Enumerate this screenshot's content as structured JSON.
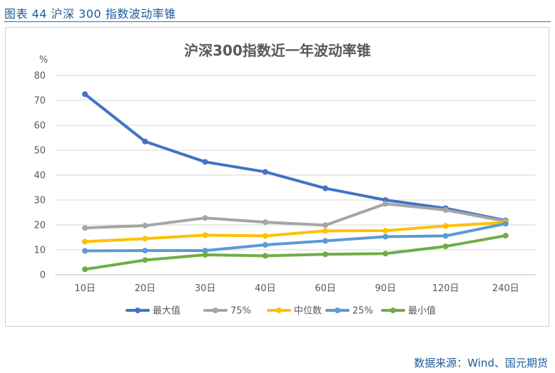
{
  "caption": "图表 44  沪深 300 指数波动率锥",
  "source": "数据来源：Wind、国元期货",
  "chart_data": {
    "type": "line",
    "title": "沪深300指数近一年波动率锥",
    "ylabel": "%",
    "xlabel": "",
    "ylim": [
      0,
      80
    ],
    "yticks": [
      0,
      10,
      20,
      30,
      40,
      50,
      60,
      70,
      80
    ],
    "grid": true,
    "legend_position": "bottom",
    "categories": [
      "10日",
      "20日",
      "30日",
      "40日",
      "60日",
      "90日",
      "120日",
      "240日"
    ],
    "series": [
      {
        "name": "最大值",
        "color": "#4472c4",
        "values": [
          72.5,
          53.5,
          45.3,
          41.3,
          34.7,
          30.0,
          26.7,
          21.8
        ]
      },
      {
        "name": "75%",
        "color": "#a5a5a5",
        "values": [
          18.8,
          19.7,
          22.8,
          21.1,
          19.9,
          28.5,
          26.0,
          21.5
        ]
      },
      {
        "name": "中位数",
        "color": "#ffc000",
        "values": [
          13.3,
          14.5,
          15.9,
          15.6,
          17.6,
          17.7,
          19.6,
          21.0
        ]
      },
      {
        "name": "25%",
        "color": "#5b9bd5",
        "values": [
          9.6,
          9.7,
          9.7,
          12.0,
          13.6,
          15.3,
          15.6,
          20.5
        ]
      },
      {
        "name": "最小值",
        "color": "#70ad47",
        "values": [
          2.2,
          5.9,
          8.0,
          7.6,
          8.2,
          8.5,
          11.4,
          15.7
        ]
      }
    ]
  }
}
